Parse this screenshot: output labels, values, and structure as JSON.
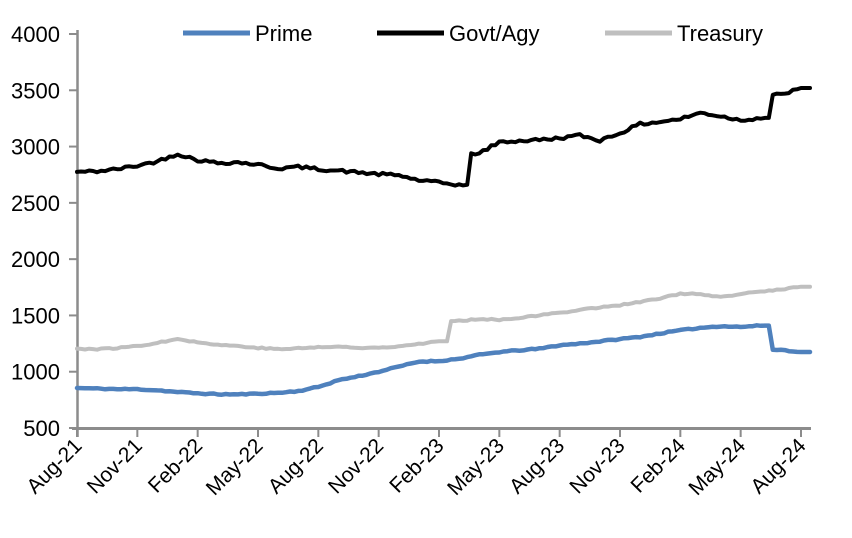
{
  "window": {
    "background_color": "#ffffff"
  },
  "chart_data": {
    "type": "line",
    "title": "",
    "xlabel": "",
    "ylabel": "",
    "ylim": [
      500,
      4000
    ],
    "y_ticks": [
      500,
      1000,
      1500,
      2000,
      2500,
      3000,
      3500,
      4000
    ],
    "x_tick_labels": [
      "Aug-21",
      "Nov-21",
      "Feb-22",
      "May-22",
      "Aug-22",
      "Nov-22",
      "Feb-23",
      "May-23",
      "Aug-23",
      "Nov-23",
      "Feb-24",
      "May-24",
      "Aug-24"
    ],
    "months": [
      "Aug-21",
      "Sep-21",
      "Oct-21",
      "Nov-21",
      "Dec-21",
      "Jan-22",
      "Feb-22",
      "Mar-22",
      "Apr-22",
      "May-22",
      "Jun-22",
      "Jul-22",
      "Aug-22",
      "Sep-22",
      "Oct-22",
      "Nov-22",
      "Dec-22",
      "Jan-23",
      "Feb-23",
      "Mar-23",
      "Apr-23",
      "May-23",
      "Jun-23",
      "Jul-23",
      "Aug-23",
      "Sep-23",
      "Oct-23",
      "Nov-23",
      "Dec-23",
      "Jan-24",
      "Feb-24",
      "Mar-24",
      "Apr-24",
      "May-24",
      "Jun-24",
      "Jul-24",
      "Aug-24"
    ],
    "series": [
      {
        "name": "Prime",
        "color": "#4F81BD",
        "values": [
          855,
          850,
          845,
          845,
          835,
          820,
          808,
          800,
          798,
          805,
          812,
          828,
          865,
          925,
          960,
          1000,
          1045,
          1090,
          1095,
          1115,
          1150,
          1175,
          1190,
          1205,
          1235,
          1250,
          1270,
          1290,
          1310,
          1340,
          1368,
          1390,
          1405,
          1398,
          1410,
          1195,
          1175
        ]
      },
      {
        "name": "Govt/Agy",
        "color": "#000000",
        "values": [
          2775,
          2780,
          2800,
          2830,
          2870,
          2935,
          2880,
          2855,
          2860,
          2840,
          2805,
          2820,
          2800,
          2785,
          2770,
          2755,
          2745,
          2700,
          2680,
          2660,
          2940,
          3040,
          3050,
          3060,
          3075,
          3100,
          3055,
          3120,
          3200,
          3220,
          3245,
          3300,
          3270,
          3235,
          3255,
          3460,
          3520
        ]
      },
      {
        "name": "Treasury",
        "color": "#BFBFBF",
        "values": [
          1205,
          1200,
          1210,
          1230,
          1255,
          1295,
          1260,
          1240,
          1228,
          1212,
          1200,
          1208,
          1218,
          1222,
          1210,
          1215,
          1228,
          1248,
          1270,
          1450,
          1470,
          1462,
          1480,
          1500,
          1525,
          1550,
          1572,
          1592,
          1620,
          1650,
          1695,
          1688,
          1660,
          1690,
          1712,
          1732,
          1755
        ]
      }
    ],
    "legend_position": "top",
    "grid": false,
    "axis_color": "#8c8c8c",
    "text_color": "#000000"
  }
}
